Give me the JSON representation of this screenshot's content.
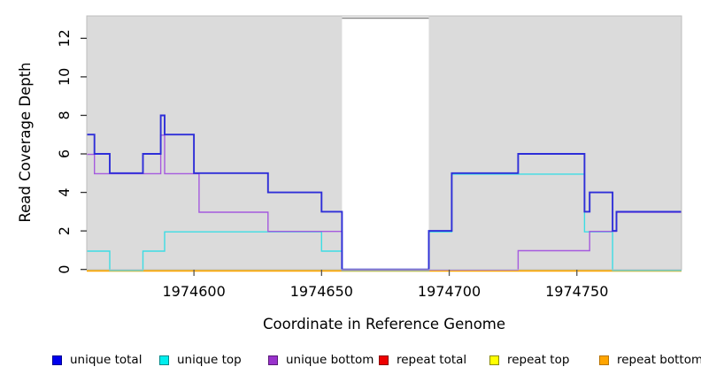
{
  "chart_data": {
    "type": "line",
    "subtype": "step",
    "title": "",
    "xlabel": "Coordinate in Reference Genome",
    "ylabel": "Read Coverage Depth",
    "xlim": [
      1974558,
      1974791
    ],
    "ylim": [
      0,
      13.2
    ],
    "x_ticks": [
      1974600,
      1974650,
      1974700,
      1974750
    ],
    "x_tick_labels": [
      "1974600",
      "1974650",
      "1974700",
      "1974750"
    ],
    "y_ticks": [
      0,
      2,
      4,
      6,
      8,
      10,
      12
    ],
    "y_tick_labels": [
      "0",
      "2",
      "4",
      "6",
      "8",
      "10",
      "12"
    ],
    "grid": false,
    "plot_bg_color": "#DBDBDB",
    "plot_border_color": "#BDBDBD",
    "masked_region": {
      "start": 1974658,
      "end": 1974692,
      "fill": "#FFFFFF",
      "cap_color": "#8A8A8A"
    },
    "legend_position": "bottom",
    "series": [
      {
        "name": "unique total",
        "color": "#2E2ED8",
        "legend_fill": "#0000EE",
        "legend_border": "#000090",
        "steps": [
          [
            1974558,
            7
          ],
          [
            1974561,
            6
          ],
          [
            1974567,
            5
          ],
          [
            1974580,
            6
          ],
          [
            1974587,
            8
          ],
          [
            1974588.5,
            7
          ],
          [
            1974600,
            5
          ],
          [
            1974629,
            4
          ],
          [
            1974650,
            3
          ],
          [
            1974658,
            0
          ],
          [
            1974692,
            2
          ],
          [
            1974701,
            5
          ],
          [
            1974727,
            6
          ],
          [
            1974753,
            3
          ],
          [
            1974755,
            4
          ],
          [
            1974764,
            2
          ],
          [
            1974765.5,
            3
          ]
        ]
      },
      {
        "name": "unique top",
        "color": "#3CDDE4",
        "legend_fill": "#00EEEE",
        "legend_border": "#008B8B",
        "steps": [
          [
            1974558,
            1
          ],
          [
            1974567,
            0
          ],
          [
            1974580,
            1
          ],
          [
            1974588.5,
            2
          ],
          [
            1974650,
            1
          ],
          [
            1974658,
            0
          ],
          [
            1974692,
            2
          ],
          [
            1974701,
            5
          ],
          [
            1974753,
            2
          ],
          [
            1974764,
            0
          ]
        ]
      },
      {
        "name": "unique bottom",
        "color": "#A55ADE",
        "legend_fill": "#9932CC",
        "legend_border": "#5A1A78",
        "steps": [
          [
            1974558,
            6
          ],
          [
            1974561,
            5
          ],
          [
            1974587,
            7
          ],
          [
            1974588.5,
            5
          ],
          [
            1974602,
            3
          ],
          [
            1974629,
            2
          ],
          [
            1974658,
            0
          ],
          [
            1974727,
            1
          ],
          [
            1974755,
            2
          ],
          [
            1974765.5,
            3
          ]
        ]
      },
      {
        "name": "repeat total",
        "color": "#DD2222",
        "legend_fill": "#EE0000",
        "legend_border": "#8B0000",
        "steps": [
          [
            1974558,
            0
          ]
        ]
      },
      {
        "name": "repeat top",
        "color": "#EEEE00",
        "legend_fill": "#FFFF00",
        "legend_border": "#8B8B00",
        "steps": [
          [
            1974558,
            0
          ]
        ]
      },
      {
        "name": "repeat bottom",
        "color": "#FFA500",
        "legend_fill": "#FFA500",
        "legend_border": "#B87400",
        "steps": [
          [
            1974558,
            0
          ]
        ]
      }
    ]
  }
}
